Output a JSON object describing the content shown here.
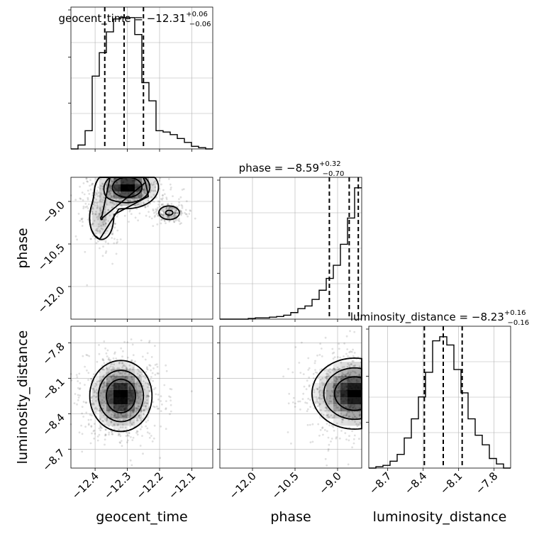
{
  "chart_data": {
    "type": "corner",
    "parameters": [
      "geocent_time",
      "phase",
      "luminosity_distance"
    ],
    "colors": {
      "line": "#000000",
      "grid": "#b0b0b0",
      "scatter": "#000000"
    },
    "titles": [
      {
        "text": "geocent_time = −12.31",
        "sup": "+0.06",
        "sub": "−0.06"
      },
      {
        "text": "phase = −8.59",
        "sup": "+0.32",
        "sub": "−0.70"
      },
      {
        "text": "luminosity_distance = −8.23",
        "sup": "+0.16",
        "sub": "−0.16"
      }
    ],
    "axes": {
      "geocent_time": {
        "range": [
          -12.475,
          -12.035
        ],
        "ticks": [
          -12.4,
          -12.3,
          -12.2,
          -12.1
        ],
        "tick_labels": [
          "−12.4",
          "−12.3",
          "−12.2",
          "−12.1"
        ]
      },
      "phase": {
        "range": [
          -13.15,
          -8.15
        ],
        "ticks": [
          -12.0,
          -10.5,
          -9.0
        ],
        "tick_labels": [
          "−12.0",
          "−10.5",
          "−9.0"
        ]
      },
      "luminosity_distance": {
        "range": [
          -8.86,
          -7.66
        ],
        "ticks": [
          -8.7,
          -8.4,
          -8.1,
          -7.8
        ],
        "tick_labels": [
          "−8.7",
          "−8.4",
          "−8.1",
          "−7.8"
        ]
      }
    },
    "quantiles": {
      "geocent_time": [
        -12.37,
        -12.31,
        -12.25
      ],
      "phase": [
        -9.29,
        -8.59,
        -8.27
      ],
      "luminosity_distance": [
        -8.39,
        -8.23,
        -8.07
      ]
    },
    "histograms": {
      "geocent_time": {
        "edges": [
          -12.475,
          -12.453,
          -12.431,
          -12.409,
          -12.387,
          -12.365,
          -12.343,
          -12.321,
          -12.299,
          -12.277,
          -12.255,
          -12.233,
          -12.211,
          -12.189,
          -12.167,
          -12.145,
          -12.123,
          -12.101,
          -12.079,
          -12.057,
          -12.035
        ],
        "counts": [
          0,
          3,
          14,
          56,
          74,
          90,
          100,
          101,
          101,
          88,
          51,
          37,
          14,
          13,
          11,
          8,
          5,
          2,
          1,
          0
        ]
      },
      "phase": {
        "edges": [
          -13.15,
          -12.9,
          -12.65,
          -12.4,
          -12.15,
          -11.9,
          -11.65,
          -11.4,
          -11.15,
          -10.9,
          -10.65,
          -10.4,
          -10.15,
          -9.9,
          -9.65,
          -9.4,
          -9.15,
          -8.9,
          -8.65,
          -8.4,
          -8.15
        ],
        "counts": [
          0,
          0,
          0,
          0,
          0.5,
          1,
          1,
          1.5,
          2,
          3,
          5,
          8,
          10,
          15,
          22,
          31,
          41,
          57,
          77,
          100
        ]
      },
      "luminosity_distance": {
        "edges": [
          -8.86,
          -8.8,
          -8.74,
          -8.68,
          -8.62,
          -8.56,
          -8.5,
          -8.44,
          -8.38,
          -8.32,
          -8.26,
          -8.2,
          -8.14,
          -8.08,
          -8.02,
          -7.96,
          -7.9,
          -7.84,
          -7.78,
          -7.72,
          -7.66
        ],
        "counts": [
          0,
          1,
          2,
          5,
          10,
          22,
          36,
          52,
          70,
          93,
          96,
          90,
          72,
          55,
          36,
          24,
          17,
          7,
          3,
          0
        ]
      }
    },
    "peaks_2d": {
      "phase_vs_geocent_time": [
        {
          "x": -12.3,
          "y": -8.5,
          "sx": 0.045,
          "sy": 0.35,
          "w": 1.0
        },
        {
          "x": -12.17,
          "y": -9.4,
          "sx": 0.02,
          "sy": 0.15,
          "w": 0.35
        },
        {
          "x": -12.38,
          "y": -9.6,
          "sx": 0.025,
          "sy": 0.5,
          "w": 0.3
        }
      ],
      "luminosity_distance_vs_geocent_time": [
        {
          "x": -12.32,
          "y": -8.25,
          "sx": 0.045,
          "sy": 0.14,
          "w": 1.0
        }
      ],
      "luminosity_distance_vs_phase": [
        {
          "x": -8.4,
          "y": -8.23,
          "sx": 0.7,
          "sy": 0.14,
          "w": 1.0
        }
      ]
    },
    "grid": true
  }
}
